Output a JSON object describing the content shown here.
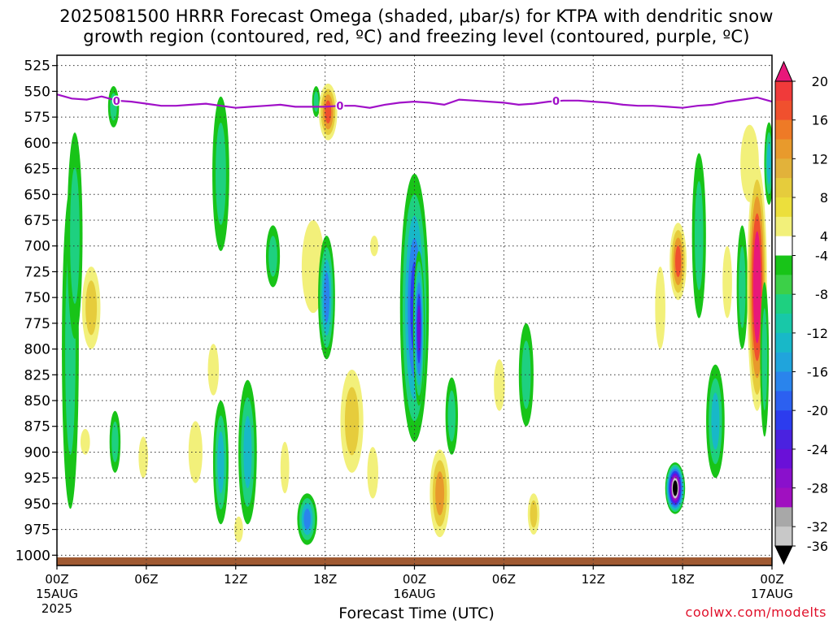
{
  "title_line1": "2025081500 HRRR Forecast Omega (shaded, μbar/s) for KTPA with dendritic snow",
  "title_line2": "growth region (contoured, red, ºC) and freezing level (contoured, purple, ºC)",
  "x_axis_label": "Forecast Time (UTC)",
  "credit": "coolwx.com/modelts",
  "chart_data": {
    "type": "heatmap",
    "title": "2025081500 HRRR Forecast Omega (shaded, μbar/s) for KTPA with dendritic snow growth region (contoured, red, ºC) and freezing level (contoured, purple, ºC)",
    "xlabel": "Forecast Time (UTC)",
    "ylabel": "",
    "x_range_hours": [
      0,
      48
    ],
    "y_range_hpa": [
      1010,
      515
    ],
    "y_ticks": [
      525,
      550,
      575,
      600,
      625,
      650,
      675,
      700,
      725,
      750,
      775,
      800,
      825,
      850,
      875,
      900,
      925,
      950,
      975,
      1000
    ],
    "x_ticks": [
      {
        "hour": 0,
        "label": "00Z",
        "date": "15AUG",
        "year": "2025"
      },
      {
        "hour": 6,
        "label": "06Z"
      },
      {
        "hour": 12,
        "label": "12Z"
      },
      {
        "hour": 18,
        "label": "18Z"
      },
      {
        "hour": 24,
        "label": "00Z",
        "date": "16AUG"
      },
      {
        "hour": 30,
        "label": "06Z"
      },
      {
        "hour": 36,
        "label": "12Z"
      },
      {
        "hour": 42,
        "label": "18Z"
      },
      {
        "hour": 48,
        "label": "00Z",
        "date": "17AUG"
      }
    ],
    "grid": true,
    "colorbar": {
      "labels": [
        "20",
        "16",
        "12",
        "8",
        "4",
        "-4",
        "-8",
        "-12",
        "-16",
        "-20",
        "-24",
        "-28",
        "-32",
        "-36"
      ],
      "bins": [
        {
          "min": 20,
          "max": null,
          "color": "#e8187a"
        },
        {
          "min": 18,
          "max": 20,
          "color": "#f03a3a"
        },
        {
          "min": 16,
          "max": 18,
          "color": "#f0502e"
        },
        {
          "min": 14,
          "max": 16,
          "color": "#ee7a26"
        },
        {
          "min": 12,
          "max": 14,
          "color": "#e89a2c"
        },
        {
          "min": 10,
          "max": 12,
          "color": "#e2b23a"
        },
        {
          "min": 8,
          "max": 10,
          "color": "#e6cc3c"
        },
        {
          "min": 6,
          "max": 8,
          "color": "#ecdf3c"
        },
        {
          "min": 4,
          "max": 6,
          "color": "#f2f07a"
        },
        {
          "min": -4,
          "max": 4,
          "color": "#ffffff"
        },
        {
          "min": -6,
          "max": -4,
          "color": "#18c418"
        },
        {
          "min": -8,
          "max": -6,
          "color": "#3cd048"
        },
        {
          "min": -10,
          "max": -8,
          "color": "#1ed080"
        },
        {
          "min": -12,
          "max": -10,
          "color": "#18c8a8"
        },
        {
          "min": -14,
          "max": -12,
          "color": "#18b8c8"
        },
        {
          "min": -16,
          "max": -14,
          "color": "#20a4dc"
        },
        {
          "min": -18,
          "max": -16,
          "color": "#2a84ec"
        },
        {
          "min": -20,
          "max": -18,
          "color": "#2c60f0"
        },
        {
          "min": -22,
          "max": -20,
          "color": "#2c3cee"
        },
        {
          "min": -24,
          "max": -22,
          "color": "#4a22e0"
        },
        {
          "min": -26,
          "max": -24,
          "color": "#6a10d8"
        },
        {
          "min": -28,
          "max": -26,
          "color": "#8a10cc"
        },
        {
          "min": -30,
          "max": -28,
          "color": "#a010c0"
        },
        {
          "min": -32,
          "max": -30,
          "color": "#a8a8a8"
        },
        {
          "min": -34,
          "max": -32,
          "color": "#c8c8c8"
        },
        {
          "min": null,
          "max": -36,
          "color": "#000000"
        }
      ]
    },
    "freezing_level": {
      "label": "0",
      "color": "#a010c8",
      "hour": [
        0,
        1,
        2,
        3,
        4,
        5,
        6,
        7,
        8,
        9,
        10,
        11,
        12,
        13,
        14,
        15,
        16,
        17,
        18,
        19,
        20,
        21,
        22,
        23,
        24,
        25,
        26,
        27,
        28,
        29,
        30,
        31,
        32,
        33,
        34,
        35,
        36,
        37,
        38,
        39,
        40,
        41,
        42,
        43,
        44,
        45,
        46,
        47,
        48
      ],
      "pressure_hpa": [
        553,
        557,
        558,
        555,
        559,
        560,
        562,
        564,
        564,
        563,
        562,
        564,
        566,
        565,
        564,
        563,
        565,
        565,
        565,
        564,
        564,
        566,
        563,
        561,
        560,
        561,
        563,
        558,
        559,
        560,
        561,
        563,
        562,
        560,
        559,
        559,
        560,
        561,
        563,
        564,
        564,
        565,
        566,
        564,
        563,
        560,
        558,
        556,
        560
      ]
    },
    "omega_cells": [
      {
        "hour": 0.9,
        "hpa": 800,
        "dh": 0.7,
        "dp": 310,
        "value": -10
      },
      {
        "hour": 1.2,
        "hpa": 690,
        "dh": 0.6,
        "dp": 200,
        "value": -8
      },
      {
        "hour": 2.3,
        "hpa": 760,
        "dh": 0.8,
        "dp": 80,
        "value": 8
      },
      {
        "hour": 1.9,
        "hpa": 890,
        "dh": 0.2,
        "dp": 25,
        "value": 6
      },
      {
        "hour": 3.8,
        "hpa": 565,
        "dh": 0.3,
        "dp": 40,
        "value": -10
      },
      {
        "hour": 3.9,
        "hpa": 890,
        "dh": 0.3,
        "dp": 60,
        "value": -8
      },
      {
        "hour": 5.8,
        "hpa": 905,
        "dh": 0.2,
        "dp": 40,
        "value": 6
      },
      {
        "hour": 9.3,
        "hpa": 900,
        "dh": 0.5,
        "dp": 60,
        "value": 5
      },
      {
        "hour": 10.5,
        "hpa": 820,
        "dh": 0.3,
        "dp": 50,
        "value": 5
      },
      {
        "hour": 11,
        "hpa": 630,
        "dh": 0.7,
        "dp": 150,
        "value": -10
      },
      {
        "hour": 11,
        "hpa": 910,
        "dh": 0.6,
        "dp": 120,
        "value": -14
      },
      {
        "hour": 12.2,
        "hpa": 975,
        "dh": 0.15,
        "dp": 25,
        "value": 6
      },
      {
        "hour": 12.8,
        "hpa": 900,
        "dh": 0.8,
        "dp": 140,
        "value": -12
      },
      {
        "hour": 14.5,
        "hpa": 710,
        "dh": 0.5,
        "dp": 60,
        "value": -8
      },
      {
        "hour": 15.3,
        "hpa": 915,
        "dh": 0.15,
        "dp": 50,
        "value": 4
      },
      {
        "hour": 16.8,
        "hpa": 965,
        "dh": 0.9,
        "dp": 50,
        "value": -16
      },
      {
        "hour": 17.4,
        "hpa": 560,
        "dh": 0.1,
        "dp": 30,
        "value": -8
      },
      {
        "hour": 17.2,
        "hpa": 720,
        "dh": 1.1,
        "dp": 90,
        "value": 6
      },
      {
        "hour": 18.1,
        "hpa": 750,
        "dh": 0.7,
        "dp": 120,
        "value": -16
      },
      {
        "hour": 18.2,
        "hpa": 570,
        "dh": 0.8,
        "dp": 55,
        "value": 16
      },
      {
        "hour": 19.8,
        "hpa": 870,
        "dh": 1.1,
        "dp": 100,
        "value": 10
      },
      {
        "hour": 21.2,
        "hpa": 920,
        "dh": 0.3,
        "dp": 50,
        "value": 4
      },
      {
        "hour": 21.3,
        "hpa": 700,
        "dh": 0.1,
        "dp": 20,
        "value": 4
      },
      {
        "hour": 24.0,
        "hpa": 760,
        "dh": 1.5,
        "dp": 260,
        "value": -20
      },
      {
        "hour": 24.3,
        "hpa": 780,
        "dh": 0.35,
        "dp": 150,
        "value": -24
      },
      {
        "hour": 25.7,
        "hpa": 940,
        "dh": 0.9,
        "dp": 85,
        "value": 14
      },
      {
        "hour": 26.5,
        "hpa": 865,
        "dh": 0.4,
        "dp": 75,
        "value": -8
      },
      {
        "hour": 29.7,
        "hpa": 835,
        "dh": 0.3,
        "dp": 50,
        "value": 4
      },
      {
        "hour": 31.5,
        "hpa": 825,
        "dh": 0.55,
        "dp": 100,
        "value": -8
      },
      {
        "hour": 32,
        "hpa": 960,
        "dh": 0.35,
        "dp": 40,
        "value": 10
      },
      {
        "hour": 40.5,
        "hpa": 760,
        "dh": 0.25,
        "dp": 80,
        "value": 6
      },
      {
        "hour": 41.7,
        "hpa": 715,
        "dh": 0.7,
        "dp": 75,
        "value": 18
      },
      {
        "hour": 41.5,
        "hpa": 935,
        "dh": 0.9,
        "dp": 50,
        "value": -40
      },
      {
        "hour": 43.1,
        "hpa": 690,
        "dh": 0.5,
        "dp": 160,
        "value": -10
      },
      {
        "hour": 44.2,
        "hpa": 870,
        "dh": 0.8,
        "dp": 110,
        "value": -14
      },
      {
        "hour": 45,
        "hpa": 735,
        "dh": 0.2,
        "dp": 70,
        "value": 5
      },
      {
        "hour": 46,
        "hpa": 740,
        "dh": 0.3,
        "dp": 120,
        "value": -8
      },
      {
        "hour": 46.5,
        "hpa": 620,
        "dh": 0.8,
        "dp": 75,
        "value": 4
      },
      {
        "hour": 47.0,
        "hpa": 740,
        "dh": 0.9,
        "dp": 240,
        "value": 24
      },
      {
        "hour": 47.5,
        "hpa": 810,
        "dh": 0.15,
        "dp": 150,
        "value": -8
      },
      {
        "hour": 47.8,
        "hpa": 620,
        "dh": 0.2,
        "dp": 80,
        "value": -12
      }
    ]
  }
}
